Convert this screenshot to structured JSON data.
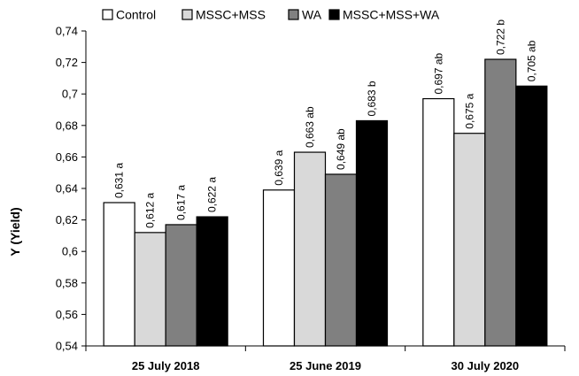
{
  "chart_data": {
    "type": "bar",
    "title": "",
    "xlabel": "",
    "ylabel": "Y (Yield)",
    "ylim": [
      0.54,
      0.74
    ],
    "ytick_step": 0.02,
    "yticks": [
      "0,54",
      "0,56",
      "0,58",
      "0,6",
      "0,62",
      "0,64",
      "0,66",
      "0,68",
      "0,7",
      "0,72",
      "0,74"
    ],
    "categories": [
      "25 July 2018",
      "25 June 2019",
      "30 July 2020"
    ],
    "legend_position": "top",
    "grid": false,
    "series": [
      {
        "name": "Control",
        "color": "#ffffff",
        "values": [
          0.631,
          0.639,
          0.697
        ],
        "labels": [
          "0,631 a",
          "0,639 a",
          "0,697 ab"
        ]
      },
      {
        "name": "MSSC+MSS",
        "color": "#d9d9d9",
        "values": [
          0.612,
          0.663,
          0.675
        ],
        "labels": [
          "0,612 a",
          "0,663 ab",
          "0,675 a"
        ]
      },
      {
        "name": "WA",
        "color": "#808080",
        "values": [
          0.617,
          0.649,
          0.722
        ],
        "labels": [
          "0,617 a",
          "0,649 ab",
          "0,722 b"
        ]
      },
      {
        "name": "MSSC+MSS+WA",
        "color": "#000000",
        "values": [
          0.622,
          0.683,
          0.705
        ],
        "labels": [
          "0,622 a",
          "0,683 b",
          "0,705 ab"
        ]
      }
    ]
  }
}
